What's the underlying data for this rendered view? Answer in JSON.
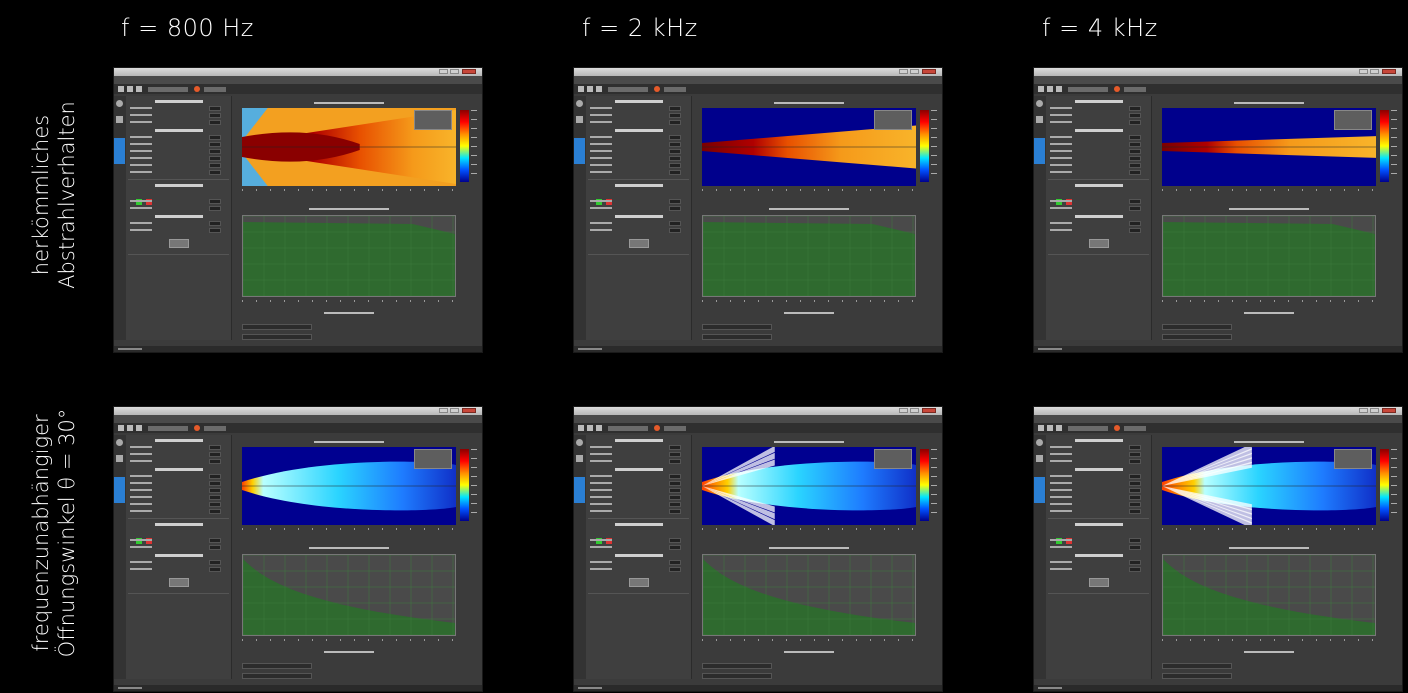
{
  "columns": [
    {
      "label": "f = 800 Hz"
    },
    {
      "label": "f = 2 kHz"
    },
    {
      "label": "f = 4 kHz"
    }
  ],
  "rows": [
    {
      "line1": "herkömmliches",
      "line2": "Abstrahlverhalten"
    },
    {
      "line1": "frequenzunabhängiger",
      "line2": "Öffnungswinkel θ = 30°"
    }
  ],
  "colors": {
    "background": "#000000",
    "panel": "#3b3b3b",
    "level_fill": "#2f6a2f",
    "heat_hot": "#8b0000",
    "heat_warm": "#ffa500",
    "heat_cold": "#00008b"
  },
  "screenshots": [
    {
      "row": 0,
      "col": 0,
      "mode": "conventional",
      "beam_half_width": 0.95,
      "hot_length": 0.55,
      "level_curve": "flat",
      "side_lobes": 0
    },
    {
      "row": 0,
      "col": 1,
      "mode": "conventional",
      "beam_half_width": 0.55,
      "hot_length": 0.4,
      "level_curve": "flat",
      "side_lobes": 0
    },
    {
      "row": 0,
      "col": 2,
      "mode": "conventional",
      "beam_half_width": 0.28,
      "hot_length": 0.35,
      "level_curve": "flat",
      "side_lobes": 0
    },
    {
      "row": 1,
      "col": 0,
      "mode": "constant",
      "beam_half_width": 0.6,
      "hot_length": 0.05,
      "level_curve": "decay",
      "side_lobes": 0
    },
    {
      "row": 1,
      "col": 1,
      "mode": "constant",
      "beam_half_width": 0.6,
      "hot_length": 0.12,
      "level_curve": "decay",
      "side_lobes": 3
    },
    {
      "row": 1,
      "col": 2,
      "mode": "constant",
      "beam_half_width": 0.6,
      "hot_length": 0.15,
      "level_curve": "decay",
      "side_lobes": 5
    }
  ]
}
